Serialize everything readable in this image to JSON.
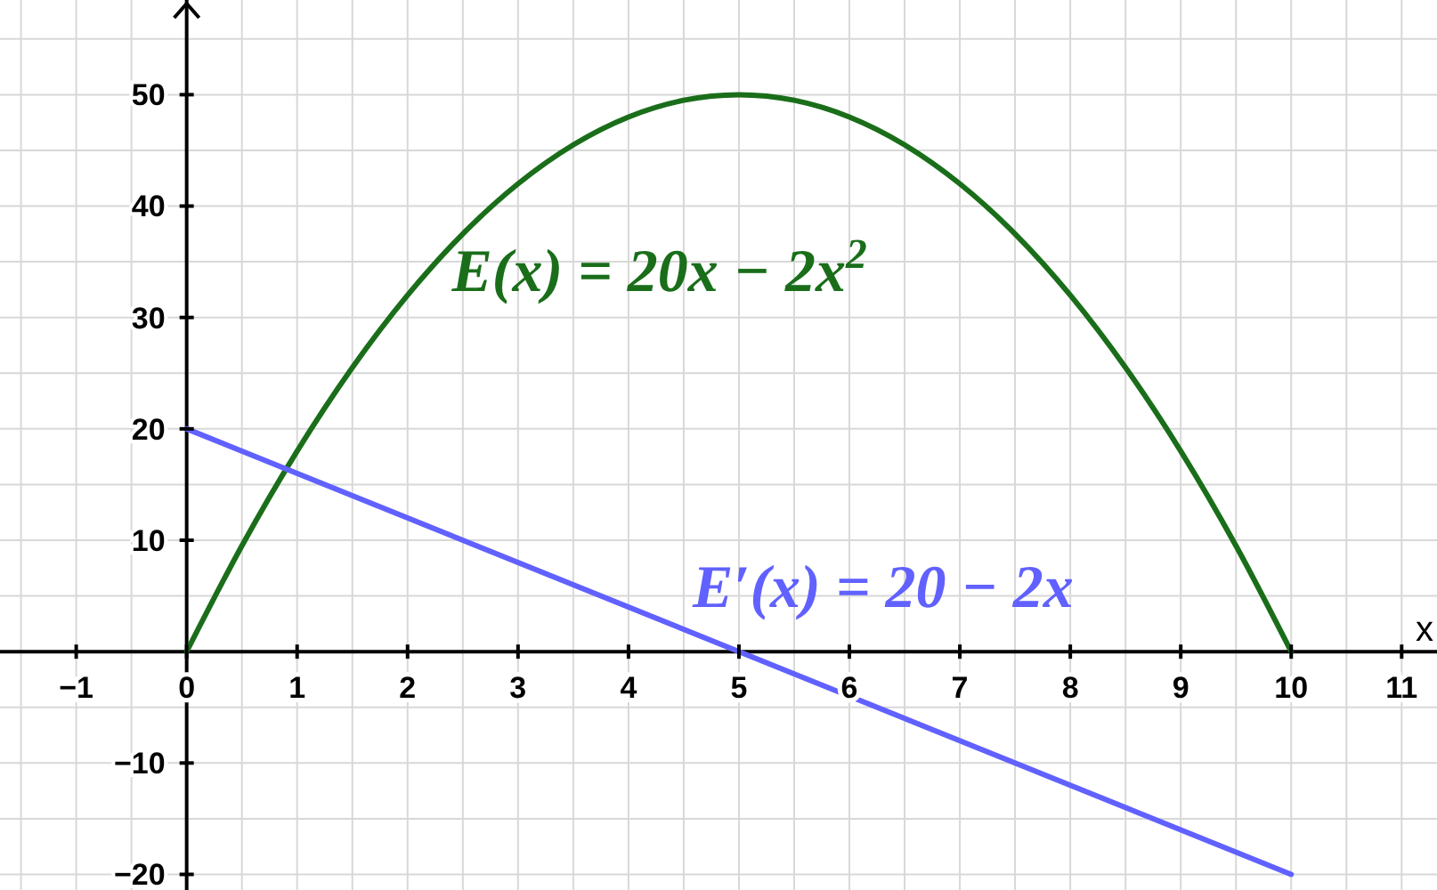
{
  "chart_data": {
    "type": "line",
    "xlabel": "x",
    "xlim": [
      -1.69,
      11.32
    ],
    "ylim": [
      -21.4,
      58.5
    ],
    "xticks": [
      -1,
      0,
      1,
      2,
      3,
      4,
      5,
      6,
      7,
      8,
      9,
      10,
      11
    ],
    "yticks": [
      -20,
      -10,
      10,
      20,
      30,
      40,
      50
    ],
    "grid": true,
    "marker": "none",
    "line_style": "solid",
    "series": [
      {
        "name": "E(x) = 20x − 2x$^{2}$",
        "color": "#1a6e1a",
        "x": [
          0,
          0.5,
          1,
          1.5,
          2,
          2.5,
          3,
          3.5,
          4,
          4.5,
          5,
          5.5,
          6,
          6.5,
          7,
          7.5,
          8,
          8.5,
          9,
          9.5,
          10
        ],
        "values": [
          0,
          9.5,
          18,
          25.5,
          32,
          37.5,
          42,
          45.5,
          48,
          49.5,
          50,
          49.5,
          48,
          45.5,
          42,
          37.5,
          32,
          25.5,
          18,
          9.5,
          0
        ]
      },
      {
        "name": "E′(x) = 20 − 2x",
        "color": "#6161ff",
        "x": [
          0,
          10
        ],
        "values": [
          20,
          -20
        ]
      }
    ]
  }
}
